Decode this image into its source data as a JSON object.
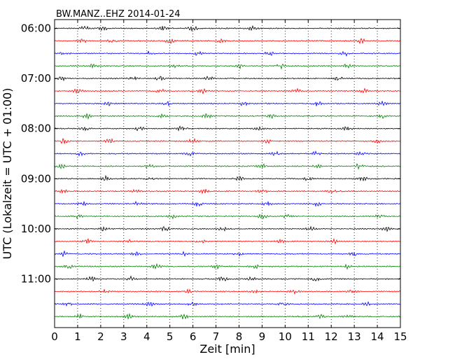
{
  "chart_data": {
    "type": "line",
    "title": "BW.MANZ..EHZ 2014-01-24",
    "xlabel": "Zeit  [min]",
    "ylabel": "UTC (Lokalzeit = UTC + 01:00)",
    "xlim": [
      0,
      15
    ],
    "x_ticks": [
      "0",
      "1",
      "2",
      "3",
      "4",
      "5",
      "6",
      "7",
      "8",
      "9",
      "10",
      "11",
      "12",
      "13",
      "14",
      "15"
    ],
    "y_tick_labels": [
      "06:00",
      "07:00",
      "08:00",
      "09:00",
      "10:00",
      "11:00"
    ],
    "row_minutes": 15,
    "row_start": "06:00",
    "row_end": "11:45",
    "grid": "vertical dotted",
    "trace_colors": [
      "#000000",
      "#ff0000",
      "#0000ff",
      "#008000"
    ],
    "series": [
      {
        "row_start": "06:00",
        "color": "#000000",
        "bursts_min": [
          1.3,
          2.1,
          4.7,
          6.0,
          8.6
        ]
      },
      {
        "row_start": "06:15",
        "color": "#ff0000",
        "bursts_min": [
          1.2,
          2.5,
          5.0,
          7.2,
          13.3
        ]
      },
      {
        "row_start": "06:30",
        "color": "#0000ff",
        "bursts_min": [
          0.4,
          4.1,
          6.2,
          9.3,
          12.6
        ]
      },
      {
        "row_start": "06:45",
        "color": "#008000",
        "bursts_min": [
          1.7,
          5.2,
          8.0,
          9.8,
          12.7
        ]
      },
      {
        "row_start": "07:00",
        "color": "#000000",
        "bursts_min": [
          0.3,
          3.4,
          4.6,
          6.7,
          12.3
        ]
      },
      {
        "row_start": "07:15",
        "color": "#ff0000",
        "bursts_min": [
          1.0,
          4.6,
          6.4,
          10.5,
          13.4
        ]
      },
      {
        "row_start": "07:30",
        "color": "#0000ff",
        "bursts_min": [
          2.3,
          4.9,
          8.2,
          11.4,
          14.2
        ]
      },
      {
        "row_start": "07:45",
        "color": "#008000",
        "bursts_min": [
          1.4,
          4.7,
          6.6,
          9.4,
          14.2
        ]
      },
      {
        "row_start": "08:00",
        "color": "#000000",
        "bursts_min": [
          1.3,
          3.7,
          5.5,
          8.9,
          12.7
        ]
      },
      {
        "row_start": "08:15",
        "color": "#ff0000",
        "bursts_min": [
          0.4,
          2.4,
          6.0,
          9.2,
          14.0
        ]
      },
      {
        "row_start": "08:30",
        "color": "#0000ff",
        "bursts_min": [
          1.1,
          5.9,
          9.6,
          11.3,
          13.3
        ]
      },
      {
        "row_start": "08:45",
        "color": "#008000",
        "bursts_min": [
          0.3,
          4.1,
          9.0,
          11.4,
          13.2
        ]
      },
      {
        "row_start": "09:00",
        "color": "#000000",
        "bursts_min": [
          2.2,
          4.2,
          8.0,
          11.0,
          13.4
        ]
      },
      {
        "row_start": "09:15",
        "color": "#ff0000",
        "bursts_min": [
          0.4,
          3.6,
          6.5,
          9.0,
          12.0
        ]
      },
      {
        "row_start": "09:30",
        "color": "#0000ff",
        "bursts_min": [
          1.2,
          3.6,
          6.2,
          9.2,
          11.4
        ]
      },
      {
        "row_start": "09:45",
        "color": "#008000",
        "bursts_min": [
          1.0,
          5.1,
          9.0,
          10.1,
          14.1
        ]
      },
      {
        "row_start": "10:00",
        "color": "#000000",
        "bursts_min": [
          2.1,
          4.8,
          7.3,
          11.1,
          14.4
        ]
      },
      {
        "row_start": "10:15",
        "color": "#ff0000",
        "bursts_min": [
          1.4,
          3.2,
          6.3,
          9.8,
          12.1
        ]
      },
      {
        "row_start": "10:30",
        "color": "#0000ff",
        "bursts_min": [
          0.4,
          3.5,
          5.6,
          8.0,
          13.0
        ]
      },
      {
        "row_start": "10:45",
        "color": "#008000",
        "bursts_min": [
          0.6,
          4.4,
          7.0,
          8.7,
          12.7
        ]
      },
      {
        "row_start": "11:00",
        "color": "#000000",
        "bursts_min": [
          1.6,
          3.3,
          7.3,
          8.6,
          11.3
        ]
      },
      {
        "row_start": "11:15",
        "color": "#ff0000",
        "bursts_min": [
          2.2,
          5.8,
          8.7,
          10.4,
          12.9
        ]
      },
      {
        "row_start": "11:30",
        "color": "#0000ff",
        "bursts_min": [
          0.6,
          4.1,
          6.0,
          9.9,
          13.5
        ]
      },
      {
        "row_start": "11:45",
        "color": "#008000",
        "bursts_min": [
          1.1,
          3.2,
          5.6,
          11.5,
          12.7
        ]
      }
    ]
  }
}
